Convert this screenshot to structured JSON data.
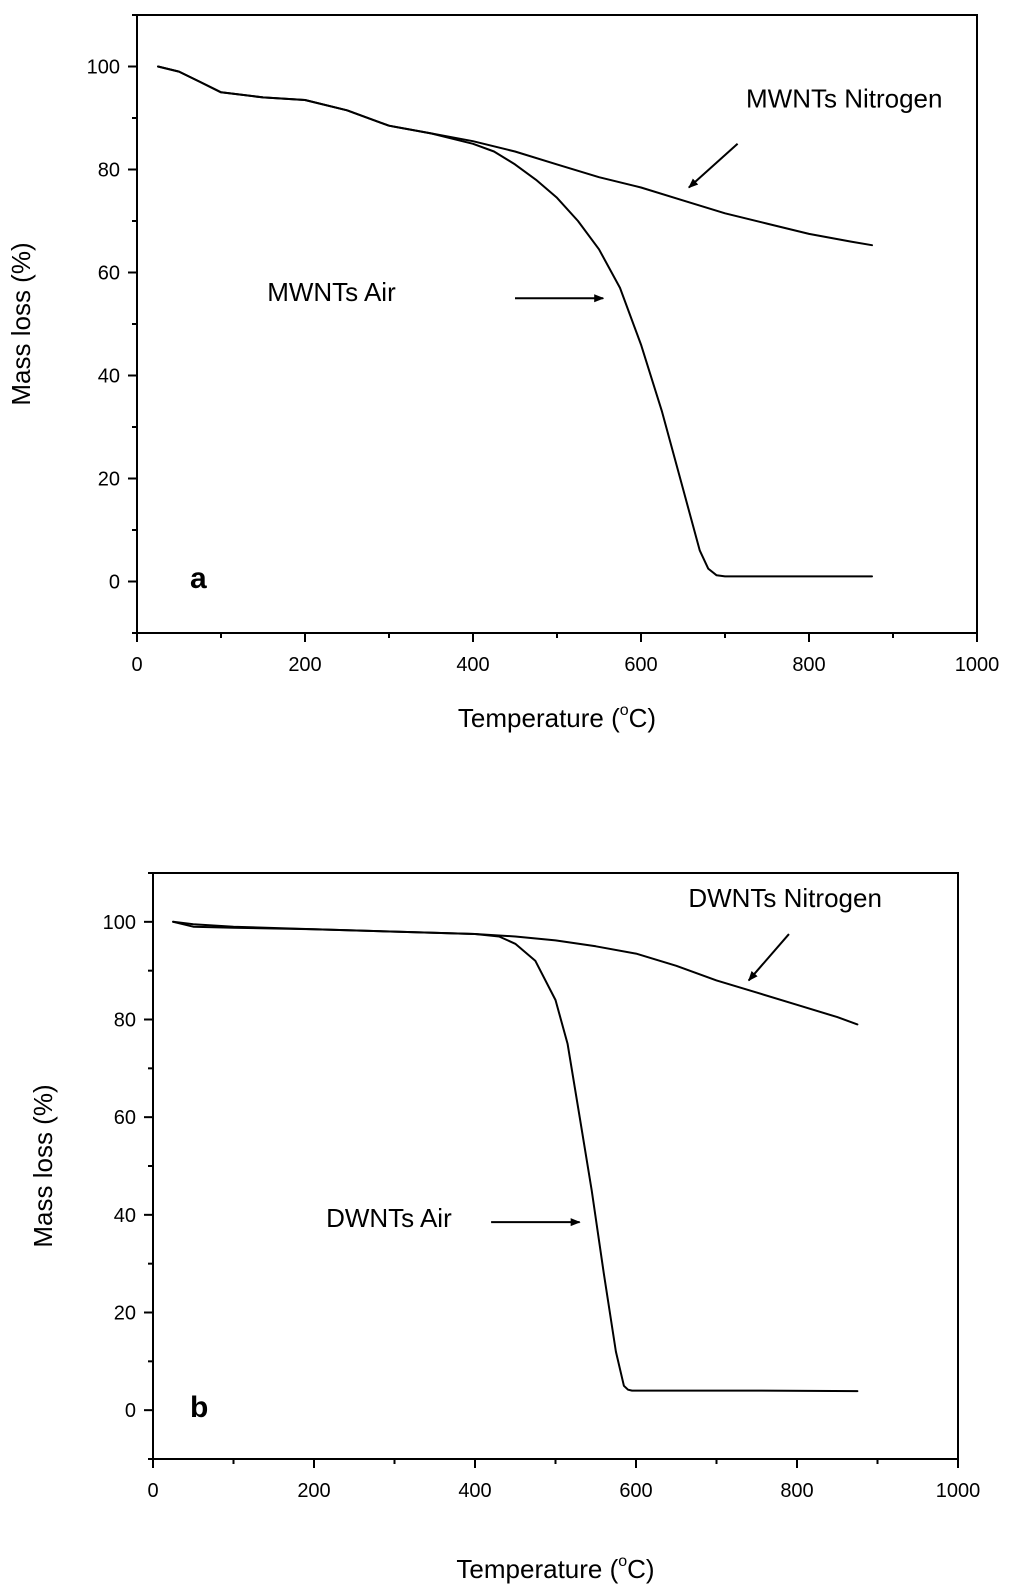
{
  "chart_data": [
    {
      "type": "line",
      "panel_label": "a",
      "xlabel": {
        "main": "Temperature (",
        "sup": "o",
        "unit_after": "C)"
      },
      "ylabel": "Mass loss (%)",
      "xlim": [
        0,
        1000
      ],
      "ylim": [
        -10,
        110
      ],
      "x_ticks": [
        "0",
        "200",
        "400",
        "600",
        "800",
        "1000"
      ],
      "y_ticks": [
        "0",
        "20",
        "40",
        "60",
        "80",
        "100"
      ],
      "grid": false,
      "series": [
        {
          "name": "MWNTs Nitrogen",
          "x": [
            25,
            50,
            75,
            100,
            150,
            200,
            250,
            300,
            350,
            400,
            450,
            500,
            550,
            600,
            650,
            700,
            750,
            800,
            850,
            875
          ],
          "y": [
            100,
            99,
            97,
            95,
            94,
            93.5,
            91.5,
            88.5,
            87,
            85.5,
            83.5,
            81,
            78.5,
            76.5,
            74,
            71.5,
            69.5,
            67.5,
            66,
            65.3
          ]
        },
        {
          "name": "MWNTs Air",
          "x": [
            25,
            50,
            75,
            100,
            150,
            200,
            250,
            300,
            350,
            400,
            425,
            450,
            475,
            500,
            525,
            550,
            575,
            600,
            625,
            650,
            670,
            680,
            690,
            700,
            750,
            800,
            875
          ],
          "y": [
            100,
            99,
            97,
            95,
            94,
            93.5,
            91.5,
            88.5,
            87,
            85,
            83.5,
            81,
            78,
            74.5,
            70,
            64.5,
            57,
            46,
            33,
            18,
            6,
            2.5,
            1.2,
            1,
            1,
            1,
            1
          ]
        }
      ],
      "annotations": [
        {
          "text": "MWNTs Nitrogen",
          "text_x": 725,
          "text_y": 92,
          "arrow_from": [
            715,
            85
          ],
          "arrow_to": [
            657,
            76.5
          ]
        },
        {
          "text": "MWNTs Air",
          "text_x": 155,
          "text_y": 54.5,
          "arrow_from": [
            450,
            55
          ],
          "arrow_to": [
            555,
            55
          ]
        }
      ]
    },
    {
      "type": "line",
      "panel_label": "b",
      "xlabel": {
        "main": "Temperature (",
        "sup": "o",
        "unit_after": "C)"
      },
      "ylabel": "Mass loss (%)",
      "xlim": [
        0,
        1000
      ],
      "ylim": [
        -10,
        110
      ],
      "x_ticks": [
        "0",
        "200",
        "400",
        "600",
        "800",
        "1000"
      ],
      "y_ticks": [
        "0",
        "20",
        "40",
        "60",
        "80",
        "100"
      ],
      "grid": false,
      "series": [
        {
          "name": "DWNTs Nitrogen",
          "x": [
            25,
            50,
            100,
            200,
            300,
            400,
            450,
            500,
            550,
            600,
            650,
            700,
            750,
            800,
            850,
            875
          ],
          "y": [
            100,
            99.5,
            99,
            98.5,
            98,
            97.5,
            97,
            96.2,
            95,
            93.5,
            91,
            88,
            85.5,
            83,
            80.5,
            79
          ]
        },
        {
          "name": "DWNTs Air",
          "x": [
            25,
            50,
            100,
            200,
            300,
            400,
            430,
            450,
            475,
            500,
            515,
            530,
            545,
            560,
            575,
            585,
            590,
            595,
            650,
            750,
            875
          ],
          "y": [
            100,
            99,
            98.8,
            98.5,
            98,
            97.5,
            97,
            95.5,
            92,
            84,
            75,
            60,
            45,
            28,
            12,
            5,
            4.2,
            4,
            4,
            4,
            3.9
          ]
        }
      ],
      "annotations": [
        {
          "text": "DWNTs Nitrogen",
          "text_x": 665,
          "text_y": 103,
          "arrow_from": [
            790,
            97.5
          ],
          "arrow_to": [
            740,
            88
          ]
        },
        {
          "text": "DWNTs Air",
          "text_x": 215,
          "text_y": 37.5,
          "arrow_from": [
            420,
            38.5
          ],
          "arrow_to": [
            530,
            38.5
          ]
        }
      ]
    }
  ]
}
